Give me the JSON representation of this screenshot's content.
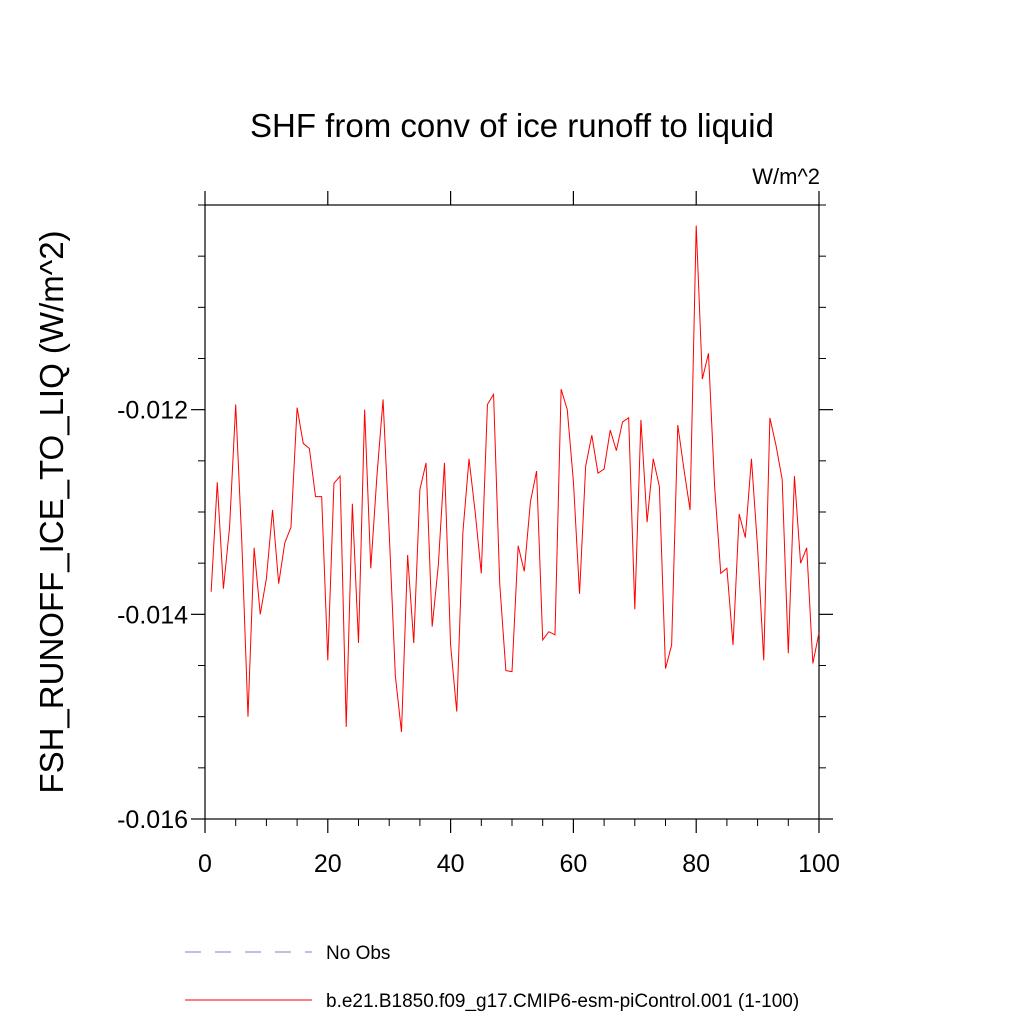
{
  "chart_data": {
    "type": "line",
    "title": "SHF from conv of ice runoff to liquid",
    "units_label": "W/m^2",
    "xlabel": "",
    "ylabel": "FSH_RUNOFF_ICE_TO_LIQ  (W/m^2)",
    "xlim": [
      0,
      100
    ],
    "ylim": [
      -0.016,
      -0.01
    ],
    "xticks": [
      0,
      20,
      40,
      60,
      80,
      100
    ],
    "xtick_labels": [
      "0",
      "20",
      "40",
      "60",
      "80",
      "100"
    ],
    "yticks": [
      -0.016,
      -0.014,
      -0.012
    ],
    "ytick_labels": [
      "-0.016",
      "-0.014",
      "-0.012"
    ],
    "grid": false,
    "legend_position": "bottom",
    "legend": [
      {
        "label": "No Obs",
        "color": "#8080c0",
        "style": "dashed"
      },
      {
        "label": "b.e21.B1850.f09_g17.CMIP6-esm-piControl.001 (1-100)",
        "color": "#ff0000",
        "style": "solid"
      }
    ],
    "series": [
      {
        "name": "b.e21.B1850.f09_g17.CMIP6-esm-piControl.001 (1-100)",
        "color": "#ff0000",
        "x": [
          1,
          2,
          3,
          4,
          5,
          6,
          7,
          8,
          9,
          10,
          11,
          12,
          13,
          14,
          15,
          16,
          17,
          18,
          19,
          20,
          21,
          22,
          23,
          24,
          25,
          26,
          27,
          28,
          29,
          30,
          31,
          32,
          33,
          34,
          35,
          36,
          37,
          38,
          39,
          40,
          41,
          42,
          43,
          44,
          45,
          46,
          47,
          48,
          49,
          50,
          51,
          52,
          53,
          54,
          55,
          56,
          57,
          58,
          59,
          60,
          61,
          62,
          63,
          64,
          65,
          66,
          67,
          68,
          69,
          70,
          71,
          72,
          73,
          74,
          75,
          76,
          77,
          78,
          79,
          80,
          81,
          82,
          83,
          84,
          85,
          86,
          87,
          88,
          89,
          90,
          91,
          92,
          93,
          94,
          95,
          96,
          97,
          98,
          99,
          100
        ],
        "values": [
          -0.01378,
          -0.01271,
          -0.01375,
          -0.01315,
          -0.01195,
          -0.0133,
          -0.015,
          -0.01335,
          -0.014,
          -0.01365,
          -0.01298,
          -0.0137,
          -0.0133,
          -0.01315,
          -0.01198,
          -0.01233,
          -0.01238,
          -0.01285,
          -0.01285,
          -0.01445,
          -0.01272,
          -0.01265,
          -0.0151,
          -0.01292,
          -0.01428,
          -0.012,
          -0.01355,
          -0.01265,
          -0.0119,
          -0.0132,
          -0.0146,
          -0.01515,
          -0.01342,
          -0.01428,
          -0.01278,
          -0.01252,
          -0.01412,
          -0.01352,
          -0.01252,
          -0.0143,
          -0.01495,
          -0.0132,
          -0.01248,
          -0.013,
          -0.0136,
          -0.01195,
          -0.01185,
          -0.0137,
          -0.01455,
          -0.01456,
          -0.01333,
          -0.01358,
          -0.0129,
          -0.0126,
          -0.01425,
          -0.01417,
          -0.0142,
          -0.0118,
          -0.012,
          -0.0127,
          -0.0138,
          -0.01255,
          -0.01225,
          -0.01262,
          -0.01258,
          -0.0122,
          -0.0124,
          -0.01212,
          -0.01208,
          -0.01395,
          -0.0121,
          -0.0131,
          -0.01248,
          -0.01275,
          -0.01453,
          -0.0143,
          -0.01215,
          -0.01258,
          -0.01298,
          -0.0102,
          -0.0117,
          -0.01145,
          -0.01275,
          -0.0136,
          -0.01355,
          -0.0143,
          -0.01302,
          -0.01325,
          -0.01248,
          -0.01335,
          -0.01445,
          -0.01208,
          -0.01235,
          -0.01268,
          -0.01438,
          -0.01265,
          -0.0135,
          -0.01335,
          -0.01448,
          -0.01418
        ]
      }
    ]
  }
}
